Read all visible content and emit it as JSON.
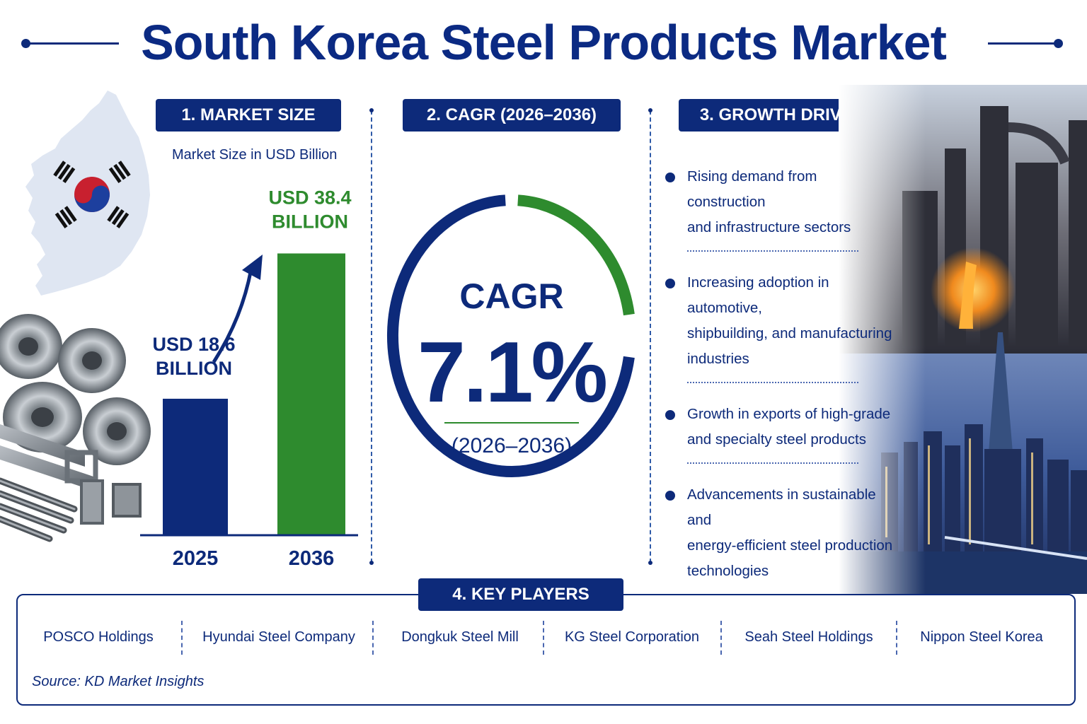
{
  "header": {
    "title": "South Korea Steel Products Market"
  },
  "sections": {
    "market_size": {
      "label": "1. MARKET SIZE",
      "unit_label": "Market Size in USD Billion"
    },
    "cagr": {
      "label": "2. CAGR (2026–2036)"
    },
    "growth_drivers": {
      "label": "3. GROWTH DRIVERS"
    },
    "key_players": {
      "label": "4. KEY PLAYERS"
    }
  },
  "chart_data": [
    {
      "type": "bar",
      "title": "",
      "categories": [
        "2025",
        "2036"
      ],
      "values": [
        18.6,
        38.4
      ],
      "data_labels": [
        [
          "USD 18.6",
          "BILLION"
        ],
        [
          "USD 38.4",
          "BILLION"
        ]
      ],
      "unit": "USD Billion",
      "ylim": [
        0,
        40
      ],
      "grid": false,
      "colors": [
        "#0d2a7a",
        "#2e8b2e"
      ],
      "annotation": "growth-arrow"
    },
    {
      "type": "pie",
      "title": "CAGR",
      "value_text": "7.1%",
      "value": 7.1,
      "period": "(2026–2036)",
      "colors": [
        "#0d2a7a",
        "#2e8b2e"
      ]
    }
  ],
  "drivers": [
    {
      "lines": [
        "Rising demand from construction",
        "and infrastructure sectors"
      ]
    },
    {
      "lines": [
        "Increasing adoption in automotive,",
        "shipbuilding, and manufacturing",
        "industries"
      ]
    },
    {
      "lines": [
        "Growth in exports of high-grade",
        "and specialty steel products"
      ]
    },
    {
      "lines": [
        "Advancements in sustainable and",
        "energy-efficient steel production",
        "technologies"
      ]
    }
  ],
  "key_players": [
    "POSCO Holdings",
    "Hyundai Steel Company",
    "Dongkuk Steel Mill",
    "KG Steel Corporation",
    "Seah Steel Holdings",
    "Nippon Steel Korea"
  ],
  "source": "Source: KD Market Insights",
  "icons": {
    "map": "south-korea-map-icon",
    "flag": "south-korea-flag-icon",
    "metal": "steel-products-illustration",
    "city": "steel-plant-and-city-illustration"
  },
  "colors": {
    "navy": "#0d2a7a",
    "green": "#2e8b2e"
  }
}
